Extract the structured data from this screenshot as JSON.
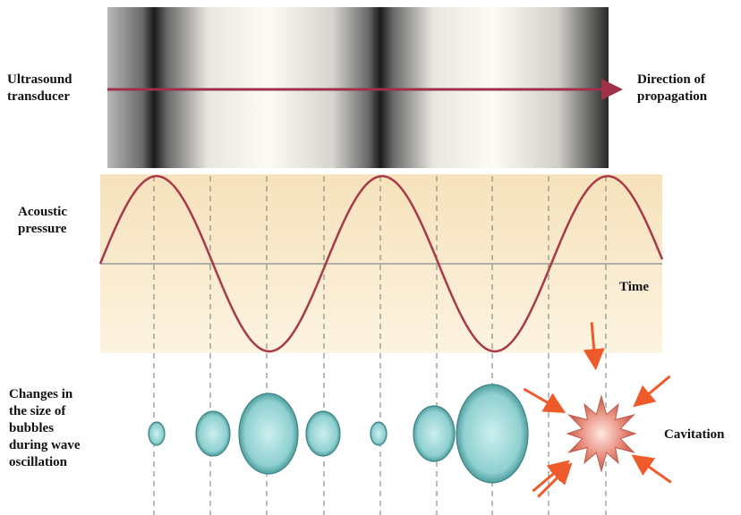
{
  "labels": {
    "transducer": [
      "Ultrasound",
      "transducer"
    ],
    "direction": [
      "Direction of",
      "propagation"
    ],
    "pressure": [
      "Acoustic",
      "pressure"
    ],
    "time": "Time",
    "bubbles": [
      "Changes in",
      "the size of",
      "bubbles",
      "during wave",
      "oscillation"
    ],
    "cavitation": "Cavitation"
  }
}
